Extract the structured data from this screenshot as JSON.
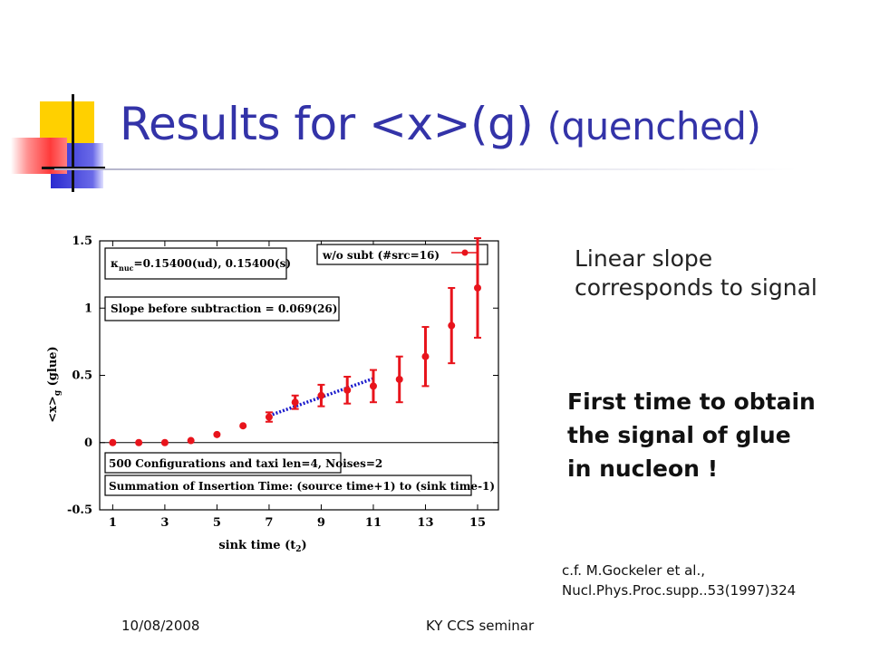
{
  "slide": {
    "title_main": "Results for <x>(g) ",
    "title_paren": "(quenched)",
    "note_signal_lines": [
      "Linear slope",
      "corresponds to signal"
    ],
    "note_glue_lines": [
      "First time to obtain",
      "the signal of glue",
      "in nucleon !"
    ],
    "ref_lines": [
      "c.f. M.Gockeler et al.,",
      "Nucl.Phys.Proc.supp..53(1997)324"
    ],
    "footer_date": "10/08/2008",
    "footer_center": "KY CCS seminar",
    "accent_colors": {
      "title": "#3333a8",
      "deco_yellow": "#ffd000",
      "deco_blue": "#2a2ad0",
      "deco_red": "#ff3a3a"
    }
  },
  "chart_data": {
    "type": "scatter",
    "xlabel": "sink time (t",
    "xlabel_sub": "2",
    "xlabel_end": ")",
    "ylabel": "<x>",
    "ylabel_sub": "g",
    "ylabel_end": " (glue)",
    "xlim": [
      0.5,
      15.8
    ],
    "ylim": [
      -0.5,
      1.5
    ],
    "xticks": [
      1,
      3,
      5,
      7,
      9,
      11,
      13,
      15
    ],
    "yticks": [
      -0.5,
      0,
      0.5,
      1,
      1.5
    ],
    "ytick_labels": [
      "-0.5",
      "0",
      "0.5",
      "1",
      "1.5"
    ],
    "series": [
      {
        "name": "w/o subt (#src=16)",
        "color": "#e8141c",
        "x": [
          1,
          2,
          3,
          4,
          5,
          6,
          7,
          8,
          9,
          10,
          11,
          12,
          13,
          14,
          15
        ],
        "y": [
          0.0,
          0.0,
          0.0,
          0.015,
          0.06,
          0.125,
          0.19,
          0.3,
          0.35,
          0.39,
          0.42,
          0.47,
          0.64,
          0.87,
          1.15
        ],
        "err": [
          0.0,
          0.0,
          0.0,
          0.0,
          0.0,
          0.0,
          0.035,
          0.05,
          0.08,
          0.1,
          0.12,
          0.17,
          0.22,
          0.28,
          0.37
        ]
      }
    ],
    "fit_line": {
      "x": [
        7,
        11
      ],
      "y": [
        0.2,
        0.476
      ],
      "color": "#1a1acc"
    },
    "labels": {
      "kappa": "=0.15400(ud), 0.15400(s)",
      "kappa_symbol": "κ",
      "kappa_sub": "nuc",
      "slope": "Slope before subtraction = 0.069(26)",
      "config": "500 Configurations and taxi len=4, Noises=2",
      "summation": "Summation of Insertion Time: (source time+1) to (sink time-1)"
    }
  }
}
